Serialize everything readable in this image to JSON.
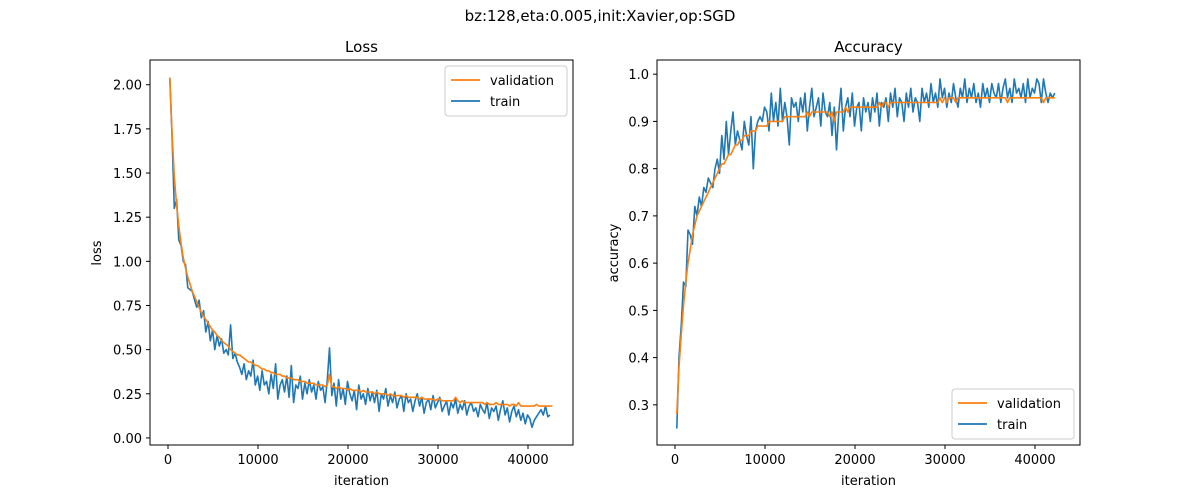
{
  "suptitle": "bz:128,eta:0.005,init:Xavier,op:SGD",
  "colors": {
    "validation": "#ff7f0e",
    "train": "#1f77b4"
  },
  "chart_data": [
    {
      "type": "line",
      "title": "Loss",
      "xlabel": "iteration",
      "ylabel": "loss",
      "xlim": [
        -2000,
        45000
      ],
      "ylim": [
        -0.04,
        2.14
      ],
      "xticks": [
        0,
        10000,
        20000,
        30000,
        40000
      ],
      "xtick_labels": [
        "0",
        "10000",
        "20000",
        "30000",
        "40000"
      ],
      "yticks": [
        0.0,
        0.25,
        0.5,
        0.75,
        1.0,
        1.25,
        1.5,
        1.75,
        2.0
      ],
      "ytick_labels": [
        "0.00",
        "0.25",
        "0.50",
        "0.75",
        "1.00",
        "1.25",
        "1.50",
        "1.75",
        "2.00"
      ],
      "grid": false,
      "legend": {
        "position": "upper-right",
        "entries": [
          "validation",
          "train"
        ]
      },
      "x_start": 200,
      "x_step": 250,
      "series": [
        {
          "name": "validation",
          "values": [
            2.04,
            1.72,
            1.48,
            1.32,
            1.2,
            1.1,
            1.02,
            0.96,
            0.91,
            0.87,
            0.83,
            0.8,
            0.77,
            0.74,
            0.71,
            0.69,
            0.67,
            0.65,
            0.63,
            0.61,
            0.6,
            0.58,
            0.57,
            0.55,
            0.54,
            0.53,
            0.52,
            0.5,
            0.49,
            0.48,
            0.47,
            0.47,
            0.46,
            0.45,
            0.44,
            0.43,
            0.43,
            0.42,
            0.41,
            0.41,
            0.4,
            0.39,
            0.39,
            0.38,
            0.38,
            0.37,
            0.37,
            0.36,
            0.36,
            0.36,
            0.35,
            0.35,
            0.34,
            0.34,
            0.34,
            0.33,
            0.33,
            0.33,
            0.32,
            0.32,
            0.32,
            0.31,
            0.31,
            0.31,
            0.31,
            0.3,
            0.3,
            0.3,
            0.3,
            0.29,
            0.3,
            0.36,
            0.29,
            0.29,
            0.28,
            0.29,
            0.28,
            0.28,
            0.28,
            0.27,
            0.28,
            0.27,
            0.27,
            0.27,
            0.27,
            0.26,
            0.27,
            0.26,
            0.26,
            0.26,
            0.26,
            0.25,
            0.26,
            0.25,
            0.25,
            0.25,
            0.25,
            0.24,
            0.25,
            0.24,
            0.24,
            0.24,
            0.24,
            0.24,
            0.23,
            0.24,
            0.23,
            0.23,
            0.23,
            0.23,
            0.23,
            0.22,
            0.23,
            0.22,
            0.22,
            0.22,
            0.22,
            0.22,
            0.21,
            0.22,
            0.22,
            0.21,
            0.21,
            0.21,
            0.21,
            0.21,
            0.21,
            0.23,
            0.21,
            0.2,
            0.21,
            0.2,
            0.2,
            0.2,
            0.2,
            0.2,
            0.2,
            0.2,
            0.2,
            0.2,
            0.19,
            0.2,
            0.19,
            0.19,
            0.19,
            0.2,
            0.19,
            0.19,
            0.19,
            0.19,
            0.19,
            0.18,
            0.19,
            0.19,
            0.18,
            0.2,
            0.18,
            0.18,
            0.18,
            0.18,
            0.18,
            0.18,
            0.18,
            0.19,
            0.18,
            0.18,
            0.18,
            0.18,
            0.18,
            0.18,
            0.18
          ]
        },
        {
          "name": "train",
          "values": [
            2.04,
            1.7,
            1.3,
            1.35,
            1.12,
            1.09,
            1.0,
            0.98,
            0.85,
            0.84,
            0.83,
            0.78,
            0.74,
            0.78,
            0.68,
            0.72,
            0.6,
            0.66,
            0.55,
            0.61,
            0.5,
            0.58,
            0.52,
            0.56,
            0.48,
            0.5,
            0.47,
            0.64,
            0.45,
            0.48,
            0.43,
            0.4,
            0.36,
            0.42,
            0.33,
            0.38,
            0.35,
            0.44,
            0.3,
            0.35,
            0.27,
            0.38,
            0.3,
            0.32,
            0.25,
            0.36,
            0.28,
            0.42,
            0.22,
            0.3,
            0.33,
            0.26,
            0.35,
            0.23,
            0.41,
            0.2,
            0.3,
            0.28,
            0.35,
            0.22,
            0.31,
            0.25,
            0.33,
            0.26,
            0.3,
            0.22,
            0.32,
            0.27,
            0.29,
            0.2,
            0.33,
            0.51,
            0.24,
            0.31,
            0.18,
            0.33,
            0.22,
            0.28,
            0.19,
            0.32,
            0.25,
            0.21,
            0.27,
            0.16,
            0.3,
            0.22,
            0.25,
            0.19,
            0.28,
            0.21,
            0.26,
            0.2,
            0.27,
            0.15,
            0.25,
            0.22,
            0.28,
            0.18,
            0.24,
            0.2,
            0.26,
            0.17,
            0.22,
            0.24,
            0.15,
            0.25,
            0.2,
            0.22,
            0.15,
            0.21,
            0.25,
            0.18,
            0.23,
            0.14,
            0.2,
            0.22,
            0.16,
            0.24,
            0.17,
            0.2,
            0.23,
            0.15,
            0.18,
            0.21,
            0.13,
            0.2,
            0.17,
            0.22,
            0.14,
            0.19,
            0.16,
            0.21,
            0.13,
            0.18,
            0.2,
            0.15,
            0.17,
            0.12,
            0.19,
            0.16,
            0.14,
            0.2,
            0.11,
            0.17,
            0.15,
            0.18,
            0.1,
            0.16,
            0.21,
            0.13,
            0.17,
            0.09,
            0.15,
            0.18,
            0.12,
            0.16,
            0.1,
            0.14,
            0.08,
            0.13,
            0.11,
            0.06,
            0.1,
            0.12,
            0.14,
            0.16,
            0.13,
            0.18,
            0.12,
            0.13
          ]
        }
      ]
    },
    {
      "type": "line",
      "title": "Accuracy",
      "xlabel": "iteration",
      "ylabel": "accuracy",
      "xlim": [
        -2000,
        45000
      ],
      "ylim": [
        0.215,
        1.03
      ],
      "xticks": [
        0,
        10000,
        20000,
        30000,
        40000
      ],
      "xtick_labels": [
        "0",
        "10000",
        "20000",
        "30000",
        "40000"
      ],
      "yticks": [
        0.3,
        0.4,
        0.5,
        0.6,
        0.7,
        0.8,
        0.9,
        1.0
      ],
      "ytick_labels": [
        "0.3",
        "0.4",
        "0.5",
        "0.6",
        "0.7",
        "0.8",
        "0.9",
        "1.0"
      ],
      "grid": false,
      "legend": {
        "position": "lower-right",
        "entries": [
          "validation",
          "train"
        ]
      },
      "x_start": 200,
      "x_step": 250,
      "series": [
        {
          "name": "validation",
          "values": [
            0.28,
            0.38,
            0.45,
            0.51,
            0.56,
            0.6,
            0.63,
            0.66,
            0.68,
            0.7,
            0.71,
            0.72,
            0.73,
            0.74,
            0.75,
            0.76,
            0.77,
            0.78,
            0.79,
            0.8,
            0.81,
            0.81,
            0.82,
            0.83,
            0.83,
            0.84,
            0.85,
            0.85,
            0.86,
            0.86,
            0.87,
            0.87,
            0.87,
            0.88,
            0.88,
            0.88,
            0.89,
            0.89,
            0.89,
            0.89,
            0.89,
            0.9,
            0.9,
            0.9,
            0.9,
            0.9,
            0.9,
            0.9,
            0.91,
            0.91,
            0.91,
            0.91,
            0.91,
            0.91,
            0.91,
            0.91,
            0.91,
            0.91,
            0.92,
            0.91,
            0.92,
            0.92,
            0.92,
            0.92,
            0.92,
            0.92,
            0.92,
            0.92,
            0.91,
            0.92,
            0.9,
            0.92,
            0.92,
            0.92,
            0.92,
            0.93,
            0.92,
            0.93,
            0.93,
            0.93,
            0.93,
            0.93,
            0.93,
            0.93,
            0.93,
            0.93,
            0.93,
            0.93,
            0.93,
            0.93,
            0.94,
            0.93,
            0.94,
            0.94,
            0.93,
            0.94,
            0.94,
            0.94,
            0.94,
            0.94,
            0.94,
            0.94,
            0.94,
            0.94,
            0.94,
            0.94,
            0.94,
            0.94,
            0.94,
            0.94,
            0.94,
            0.94,
            0.94,
            0.94,
            0.94,
            0.94,
            0.94,
            0.95,
            0.94,
            0.95,
            0.94,
            0.95,
            0.95,
            0.95,
            0.94,
            0.95,
            0.95,
            0.95,
            0.95,
            0.95,
            0.95,
            0.95,
            0.95,
            0.95,
            0.95,
            0.95,
            0.95,
            0.95,
            0.95,
            0.95,
            0.95,
            0.95,
            0.95,
            0.95,
            0.95,
            0.95,
            0.95,
            0.94,
            0.95,
            0.95,
            0.95,
            0.95,
            0.95,
            0.95,
            0.95,
            0.95,
            0.95,
            0.95,
            0.95,
            0.95,
            0.95,
            0.95,
            0.95,
            0.94,
            0.95,
            0.95,
            0.95,
            0.95,
            0.95
          ]
        },
        {
          "name": "train",
          "values": [
            0.25,
            0.4,
            0.47,
            0.56,
            0.55,
            0.67,
            0.66,
            0.64,
            0.72,
            0.7,
            0.74,
            0.72,
            0.76,
            0.75,
            0.78,
            0.77,
            0.76,
            0.8,
            0.82,
            0.79,
            0.87,
            0.82,
            0.9,
            0.83,
            0.88,
            0.92,
            0.85,
            0.88,
            0.86,
            0.84,
            0.9,
            0.87,
            0.85,
            0.91,
            0.8,
            0.88,
            0.9,
            0.91,
            0.9,
            0.93,
            0.92,
            0.88,
            0.96,
            0.9,
            0.94,
            0.89,
            0.97,
            0.9,
            0.94,
            0.91,
            0.85,
            0.95,
            0.93,
            0.94,
            0.9,
            0.95,
            0.92,
            0.96,
            0.88,
            0.93,
            0.97,
            0.91,
            0.93,
            0.95,
            0.89,
            0.96,
            0.92,
            0.91,
            0.94,
            0.87,
            0.93,
            0.84,
            0.92,
            0.97,
            0.88,
            0.93,
            0.95,
            0.91,
            0.96,
            0.89,
            0.93,
            0.94,
            0.88,
            0.95,
            0.92,
            0.94,
            0.9,
            0.95,
            0.92,
            0.96,
            0.89,
            0.94,
            0.93,
            0.95,
            0.9,
            0.96,
            0.93,
            0.97,
            0.91,
            0.95,
            0.94,
            0.9,
            0.96,
            0.93,
            0.97,
            0.92,
            0.95,
            0.94,
            0.9,
            0.97,
            0.94,
            0.96,
            0.93,
            0.98,
            0.94,
            0.96,
            0.93,
            0.99,
            0.95,
            0.97,
            0.93,
            0.96,
            0.94,
            0.98,
            0.95,
            0.93,
            0.97,
            0.95,
            0.99,
            0.94,
            0.97,
            0.95,
            0.98,
            0.94,
            0.96,
            0.93,
            0.98,
            0.95,
            0.97,
            0.94,
            0.98,
            0.96,
            0.95,
            0.98,
            0.94,
            0.97,
            0.99,
            0.95,
            0.97,
            0.94,
            0.99,
            0.96,
            0.97,
            0.95,
            0.98,
            0.94,
            0.99,
            0.95,
            0.97,
            0.96,
            0.99,
            0.98,
            0.94,
            0.99,
            0.96,
            0.94,
            0.96,
            0.95,
            0.96
          ]
        }
      ]
    }
  ]
}
